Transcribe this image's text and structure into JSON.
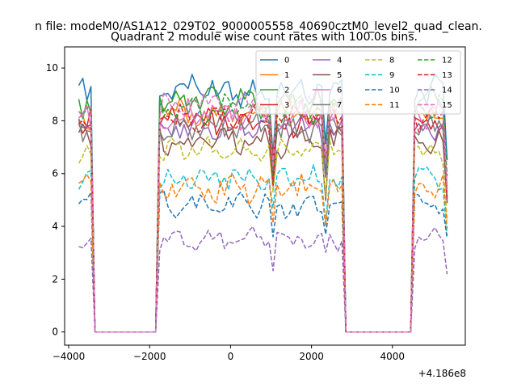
{
  "figure": {
    "suptitle": "n file: modeM0/AS1A12_029T02_9000005558_40690cztM0_level2_quad_clean.",
    "offset_label": "+4.186e8"
  },
  "chart_data": {
    "type": "line",
    "title": "Quadrant 2 module wise count rates with 100.0s bins.",
    "xlabel": "",
    "ylabel": "",
    "xlim": [
      -4100,
      5800
    ],
    "ylim": [
      -0.5,
      10.8
    ],
    "xticks": [
      -4000,
      -2000,
      0,
      2000,
      4000
    ],
    "yticks": [
      0,
      2,
      4,
      6,
      8,
      10
    ],
    "x_offset": 418600000,
    "grid": false,
    "legend": {
      "placement": "top-right",
      "columns": 4
    },
    "segments": [
      {
        "name": "on1",
        "x_start": -3750,
        "x_end": -3450,
        "step": 100
      },
      {
        "name": "off1",
        "x_start": -3350,
        "x_end": -1850,
        "step": 100
      },
      {
        "name": "on2",
        "x_start": -1750,
        "x_end": 2750,
        "step": 100
      },
      {
        "name": "off2",
        "x_start": 2850,
        "x_end": 4450,
        "step": 100
      },
      {
        "name": "on3",
        "x_start": 4550,
        "x_end": 5350,
        "step": 100
      }
    ],
    "series": [
      {
        "name": "0",
        "color": "#1f77b4",
        "dash": "solid",
        "level": 9.2,
        "spread": 0.5
      },
      {
        "name": "1",
        "color": "#ff7f0e",
        "dash": "solid",
        "level": 8.3,
        "spread": 0.45
      },
      {
        "name": "2",
        "color": "#2ca02c",
        "dash": "solid",
        "level": 8.7,
        "spread": 0.4
      },
      {
        "name": "3",
        "color": "#d62728",
        "dash": "solid",
        "level": 8.0,
        "spread": 0.45
      },
      {
        "name": "4",
        "color": "#9467bd",
        "dash": "solid",
        "level": 7.8,
        "spread": 0.4
      },
      {
        "name": "5",
        "color": "#8c564b",
        "dash": "solid",
        "level": 7.2,
        "spread": 0.45
      },
      {
        "name": "6",
        "color": "#e377c2",
        "dash": "solid",
        "level": 8.2,
        "spread": 0.45
      },
      {
        "name": "7",
        "color": "#7f7f7f",
        "dash": "solid",
        "level": 7.7,
        "spread": 0.4
      },
      {
        "name": "8",
        "color": "#bcbd22",
        "dash": "dashed",
        "level": 6.9,
        "spread": 0.4
      },
      {
        "name": "9",
        "color": "#17becf",
        "dash": "dashed",
        "level": 5.8,
        "spread": 0.35
      },
      {
        "name": "10",
        "color": "#1f77b4",
        "dash": "dashed",
        "level": 4.8,
        "spread": 0.35
      },
      {
        "name": "11",
        "color": "#ff7f0e",
        "dash": "dashed",
        "level": 5.4,
        "spread": 0.4
      },
      {
        "name": "12",
        "color": "#2ca02c",
        "dash": "dashed",
        "level": 8.4,
        "spread": 0.4
      },
      {
        "name": "13",
        "color": "#d62728",
        "dash": "dashed",
        "level": 8.1,
        "spread": 0.4
      },
      {
        "name": "14",
        "color": "#9467bd",
        "dash": "dashed",
        "level": 3.5,
        "spread": 0.3
      },
      {
        "name": "15",
        "color": "#e377c2",
        "dash": "dashed",
        "level": 8.6,
        "spread": 0.45
      }
    ]
  }
}
